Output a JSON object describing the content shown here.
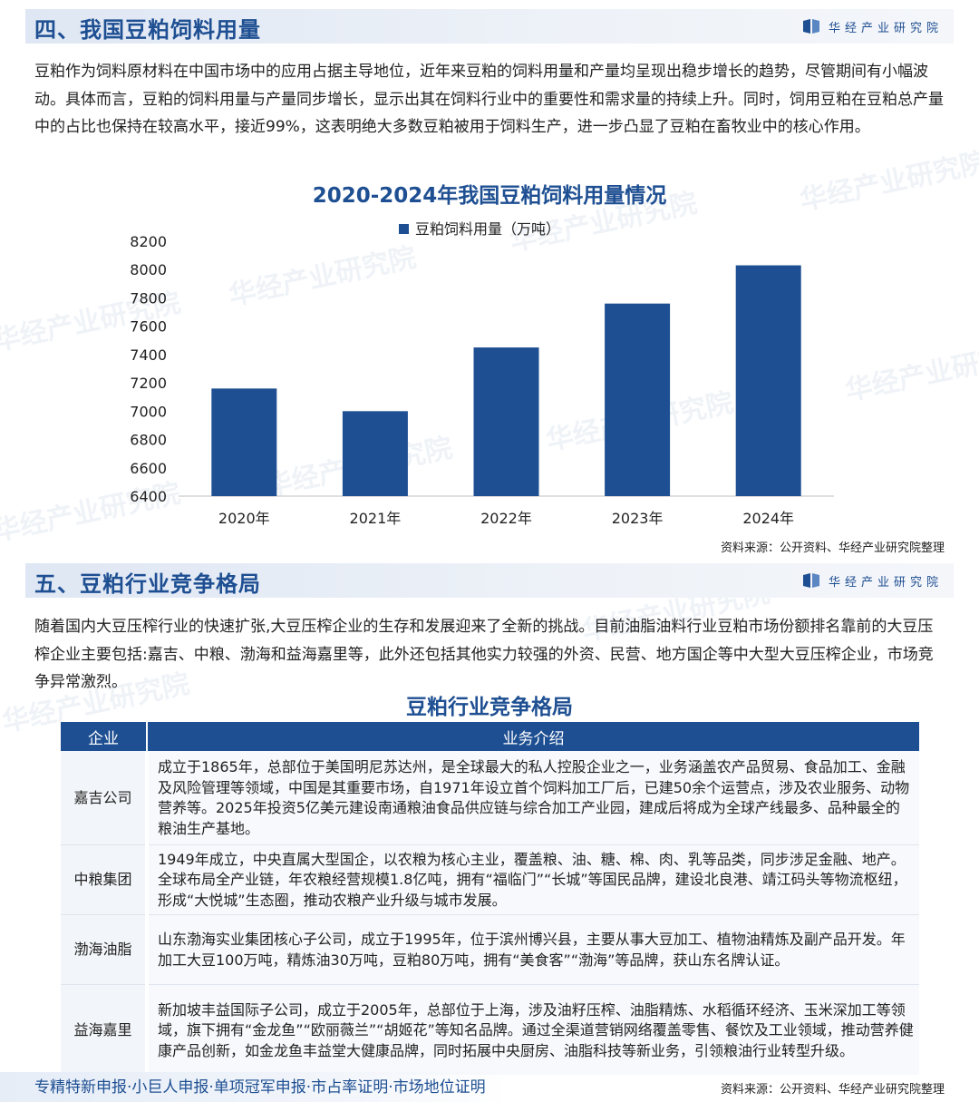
{
  "brand": {
    "name": "华经产业研究院"
  },
  "watermark": "华经产业研究院",
  "section4": {
    "title": "四、我国豆粕饲料用量",
    "paragraph": "豆粕作为饲料原材料在中国市场中的应用占据主导地位，近年来豆粕的饲料用量和产量均呈现出稳步增长的趋势，尽管期间有小幅波动。具体而言，豆粕的饲料用量与产量同步增长，显示出其在饲料行业中的重要性和需求量的持续上升。同时，饲用豆粕在豆粕总产量中的占比也保持在较高水平，接近99%，这表明绝大多数豆粕被用于饲料生产，进一步凸显了豆粕在畜牧业中的核心作用。"
  },
  "chart_data": {
    "type": "bar",
    "title": "2020-2024年我国豆粕饲料用量情况",
    "categories": [
      "2020年",
      "2021年",
      "2022年",
      "2023年",
      "2024年"
    ],
    "series": [
      {
        "name": "豆粕饲料用量（万吨）",
        "values": [
          7160,
          7000,
          7450,
          7760,
          8030
        ],
        "color": "#1e4f92"
      }
    ],
    "ylim": [
      6400,
      8200
    ],
    "yticks": [
      6400,
      6600,
      6800,
      7000,
      7200,
      7400,
      7600,
      7800,
      8000,
      8200
    ],
    "legend": "top-center",
    "grid": false
  },
  "source_label": "资料来源：公开资料、华经产业研究院整理",
  "section5": {
    "title": "五、豆粕行业竞争格局",
    "paragraph": "随着国内大豆压榨行业的快速扩张,大豆压榨企业的生存和发展迎来了全新的挑战。目前油脂油料行业豆粕市场份额排名靠前的大豆压榨企业主要包括:嘉吉、中粮、渤海和益海嘉里等，此外还包括其他实力较强的外资、民营、地方国企等中大型大豆压榨企业，市场竞争异常激烈。"
  },
  "table": {
    "title": "豆粕行业竞争格局",
    "headers": [
      "企业",
      "业务介绍"
    ],
    "rows": [
      {
        "company": "嘉吉公司",
        "desc": "成立于1865年，总部位于美国明尼苏达州，是全球最大的私人控股企业之一，业务涵盖农产品贸易、食品加工、金融及风险管理等领域，中国是其重要市场，自1971年设立首个饲料加工厂后，已建50余个运营点，涉及农业服务、动物营养等。2025年投资5亿美元建设南通粮油食品供应链与综合加工产业园，建成后将成为全球产线最多、品种最全的粮油生产基地。"
      },
      {
        "company": "中粮集团",
        "desc": "1949年成立，中央直属大型国企，以农粮为核心主业，覆盖粮、油、糖、棉、肉、乳等品类，同步涉足金融、地产。全球布局全产业链，年农粮经营规模1.8亿吨，拥有“福临门”“长城”等国民品牌，建设北良港、靖江码头等物流枢纽，形成“大悦城”生态圈，推动农粮产业升级与城市发展。"
      },
      {
        "company": "渤海油脂",
        "desc": "山东渤海实业集团核心子公司，成立于1995年，位于滨州博兴县，主要从事大豆加工、植物油精炼及副产品开发。年加工大豆100万吨，精炼油30万吨，豆粕80万吨，拥有“美食客”“渤海”等品牌，获山东名牌认证。"
      },
      {
        "company": "益海嘉里",
        "desc": "新加坡丰益国际子公司，成立于2005年，总部位于上海，涉及油籽压榨、油脂精炼、水稻循环经济、玉米深加工等领域，旗下拥有“金龙鱼”“欧丽薇兰”“胡姬花”等知名品牌。通过全渠道营销网络覆盖零售、餐饮及工业领域，推动营养健康产品创新，如金龙鱼丰益堂大健康品牌，同时拓展中央厨房、油脂科技等新业务，引领粮油行业转型升级。"
      }
    ]
  },
  "footer": {
    "links": "专精特新申报·小巨人申报·单项冠军申报·市占率证明·市场地位证明"
  }
}
